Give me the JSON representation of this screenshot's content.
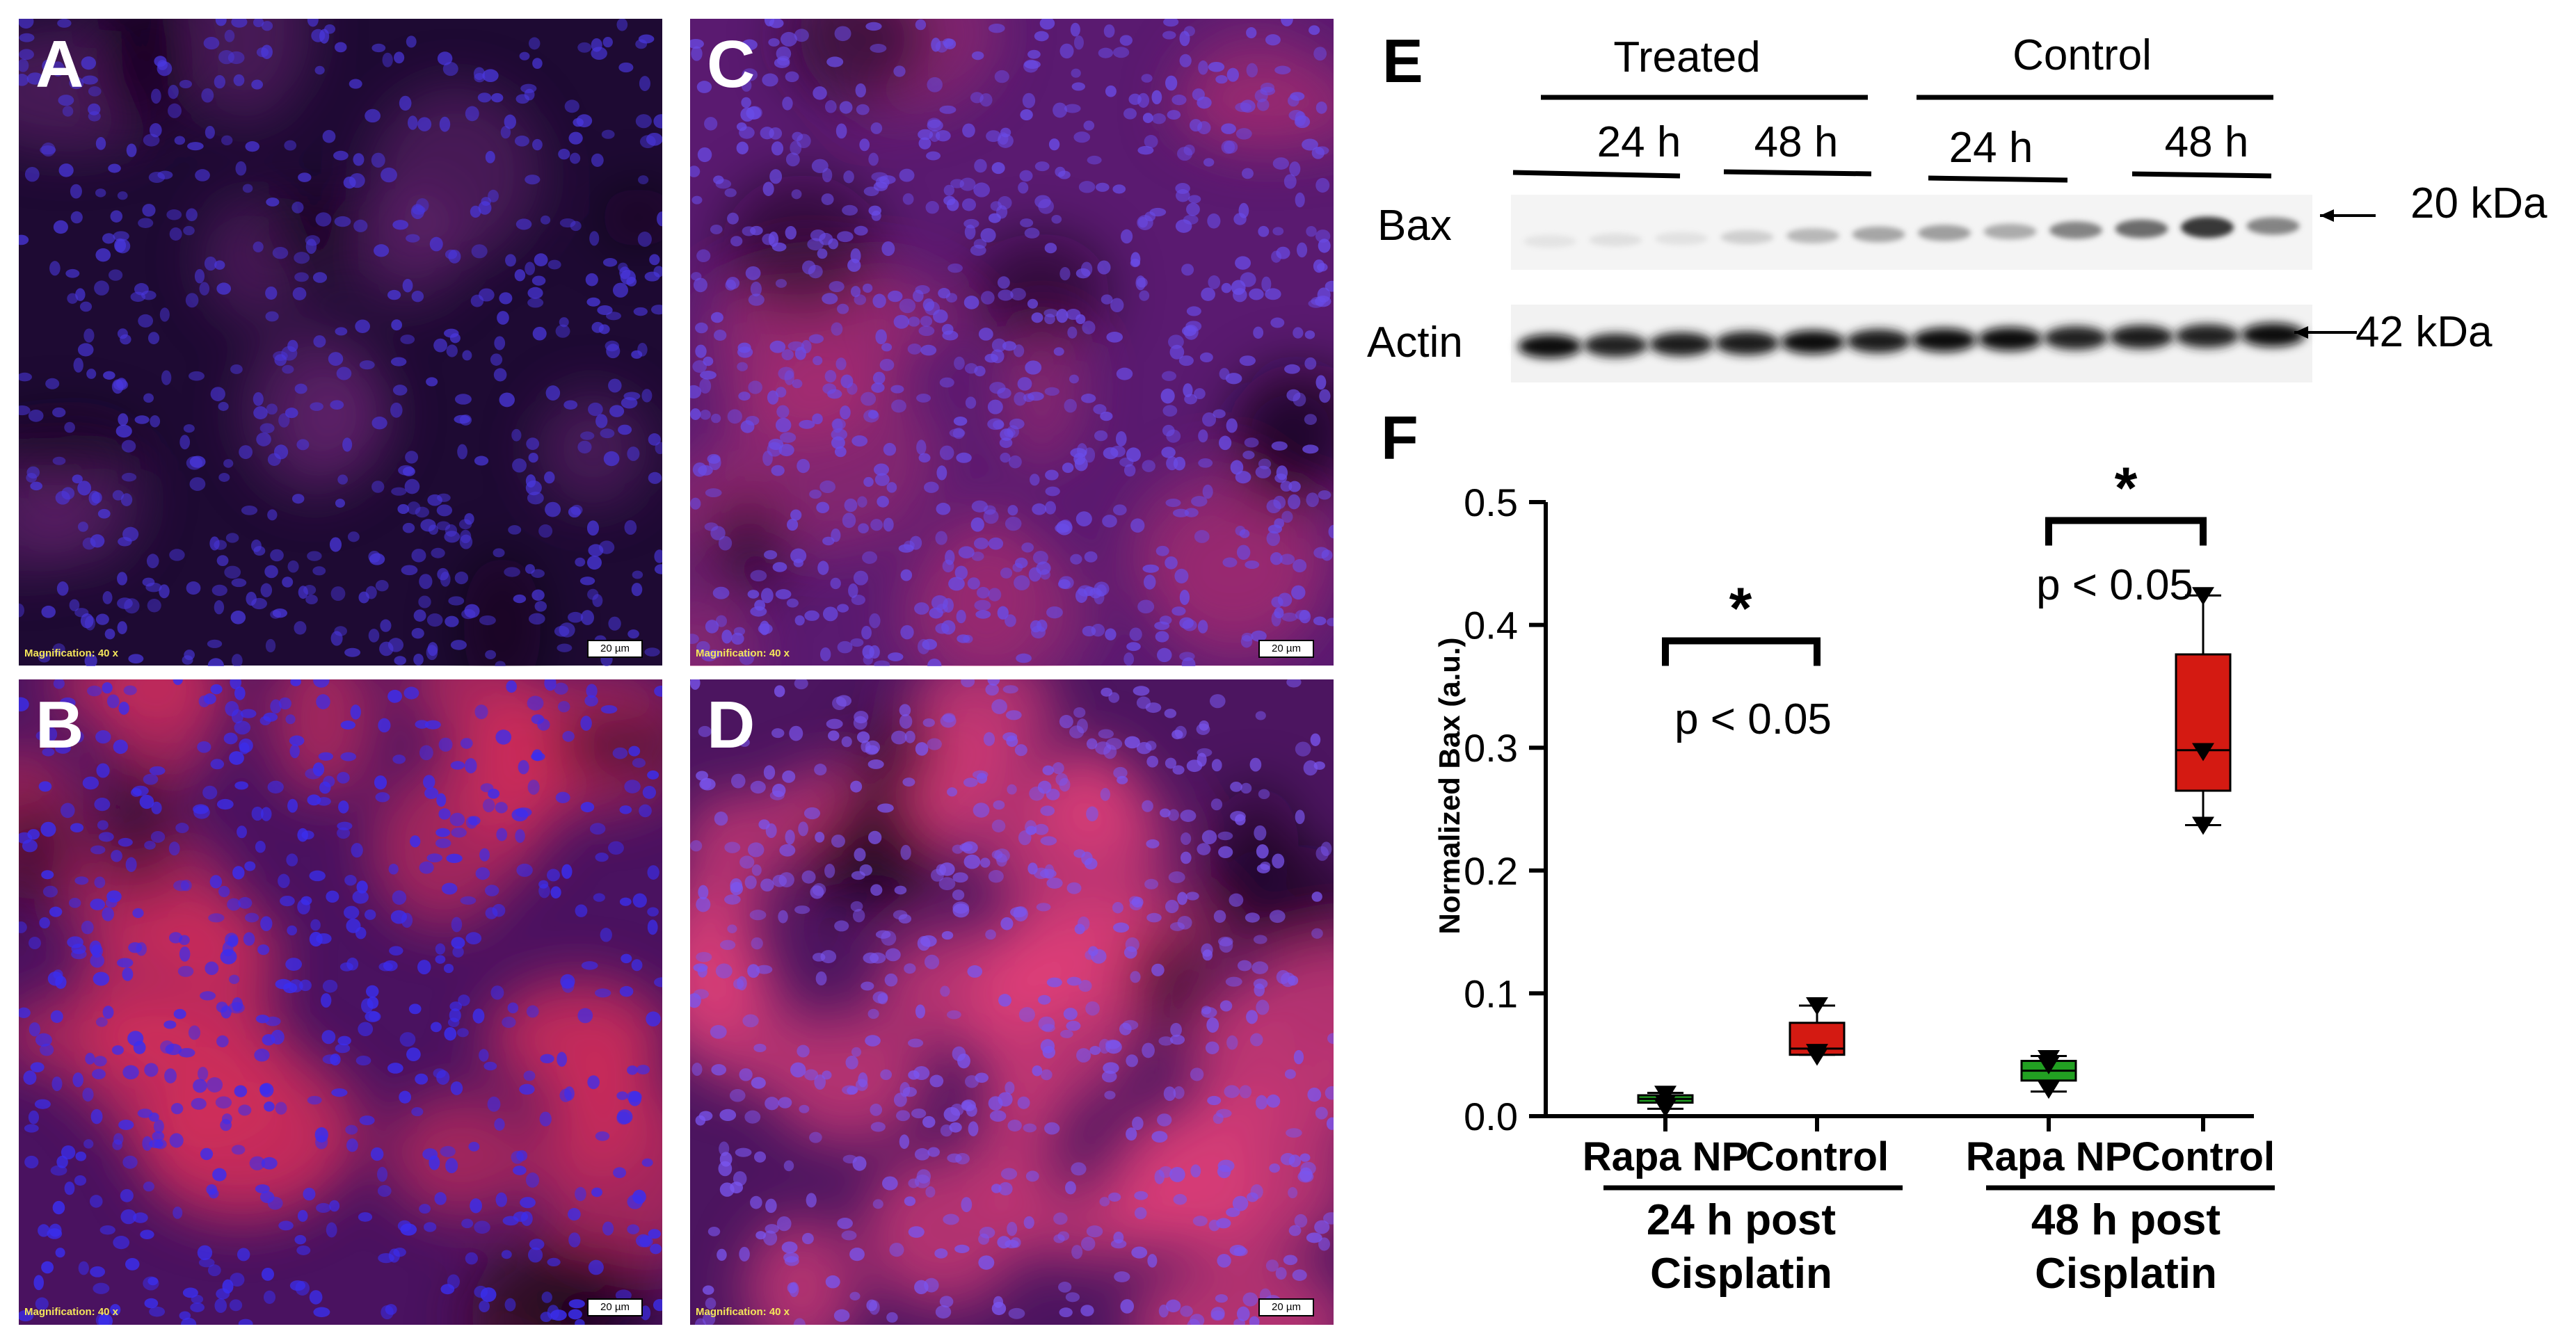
{
  "micrographs": [
    {
      "id": "A",
      "letter": "A",
      "magnification": "Magnification:  40 x",
      "scale": "20 µm",
      "tone": "dim"
    },
    {
      "id": "C",
      "letter": "C",
      "magnification": "Magnification:  40 x",
      "scale": "20 µm",
      "tone": "dense"
    },
    {
      "id": "B",
      "letter": "B",
      "magnification": "Magnification:  40 x",
      "scale": "20 µm",
      "tone": "red"
    },
    {
      "id": "D",
      "letter": "D",
      "magnification": "Magnification:  40 x",
      "scale": "20 µm",
      "tone": "redbright"
    }
  ],
  "colors": {
    "nucleus": "#3c2ef0",
    "cytoplasm_red": "#d8305a",
    "tissue_dark": "#2a0a3a",
    "box_green": "#22a022",
    "box_red": "#d41a12"
  },
  "blot": {
    "panel_letter": "E",
    "group_treated": "Treated",
    "group_control": "Control",
    "time_labels": [
      "24 h",
      "48 h",
      "24 h",
      "48 h"
    ],
    "row_bax": "Bax",
    "row_actin": "Actin",
    "marker_bax": "20 kDa",
    "marker_actin": "42 kDa",
    "bax_band_intensity": [
      0.03,
      0.05,
      0.04,
      0.12,
      0.22,
      0.3,
      0.33,
      0.28,
      0.45,
      0.55,
      0.78,
      0.45
    ],
    "actin_band_intensity": [
      0.9,
      0.8,
      0.85,
      0.85,
      0.9,
      0.85,
      0.95,
      0.9,
      0.8,
      0.85,
      0.8,
      0.9
    ]
  },
  "chart_data": {
    "type": "box",
    "panel_letter": "F",
    "ylabel": "Normalized Bax (a.u.)",
    "ylim": [
      0,
      0.5
    ],
    "yticks": [
      "0.0",
      "0.1",
      "0.2",
      "0.3",
      "0.4",
      "0.5"
    ],
    "categories": [
      "Rapa NP",
      "Control",
      "Rapa NP",
      "Control"
    ],
    "groups": [
      {
        "label_line1": "24 h post",
        "label_line2": "Cisplatin"
      },
      {
        "label_line1": "48 h post",
        "label_line2": "Cisplatin"
      }
    ],
    "boxes": [
      {
        "category": "Rapa NP",
        "color": "green",
        "q1": 0.011,
        "median": 0.014,
        "q3": 0.017,
        "whisker_low": 0.006,
        "whisker_high": 0.019,
        "points": [
          0.018,
          0.011,
          0.007
        ]
      },
      {
        "category": "Control",
        "color": "red",
        "q1": 0.05,
        "median": 0.055,
        "q3": 0.076,
        "whisker_low": 0.05,
        "whisker_high": 0.09,
        "points": [
          0.09,
          0.052,
          0.049
        ]
      },
      {
        "category": "Rapa NP",
        "color": "green",
        "q1": 0.029,
        "median": 0.037,
        "q3": 0.045,
        "whisker_low": 0.02,
        "whisker_high": 0.049,
        "points": [
          0.047,
          0.042,
          0.022
        ]
      },
      {
        "category": "Control",
        "color": "red",
        "q1": 0.265,
        "median": 0.298,
        "q3": 0.376,
        "whisker_low": 0.237,
        "whisker_high": 0.424,
        "points": [
          0.424,
          0.297,
          0.237
        ]
      }
    ],
    "significance": [
      {
        "between": [
          0,
          1
        ],
        "star": "*",
        "label": "p < 0.05",
        "bracket_y": 0.387
      },
      {
        "between": [
          2,
          3
        ],
        "star": "*",
        "label": "p < 0.05",
        "bracket_y": 0.485
      }
    ]
  }
}
